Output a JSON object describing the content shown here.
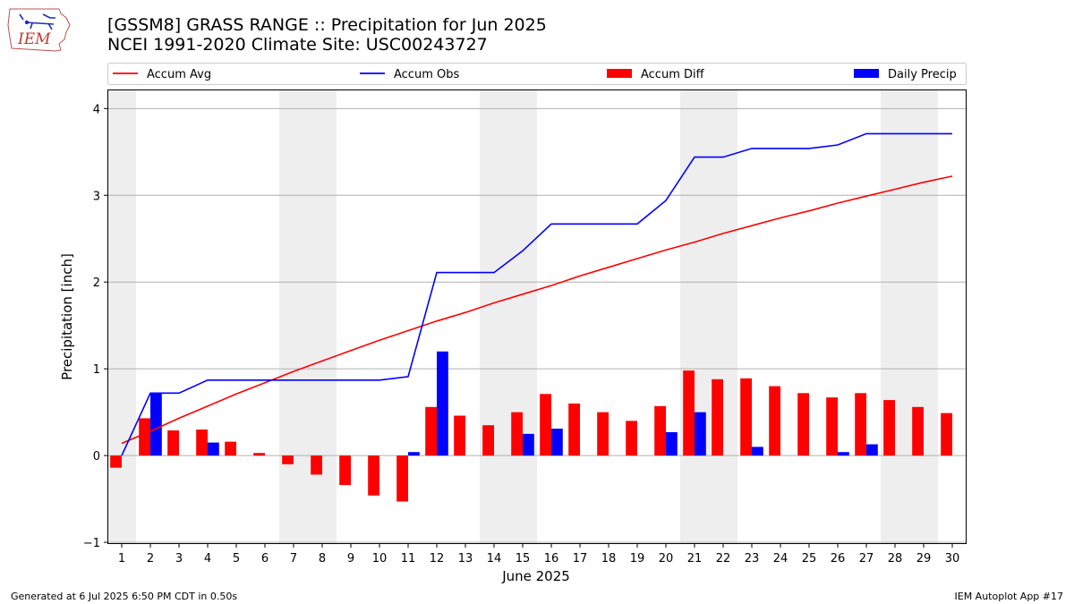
{
  "header": {
    "title_line1": "[GSSM8] GRASS RANGE :: Precipitation for Jun 2025",
    "title_line2": "NCEI 1991-2020 Climate Site: USC00243727",
    "logo_text": "IEM"
  },
  "footer": {
    "left": "Generated at 6 Jul 2025 6:50 PM CDT in 0.50s",
    "right": "IEM Autoplot App #17"
  },
  "colors": {
    "avg": "#ff0000",
    "obs": "#0000ff",
    "diff": "#ff0000",
    "daily": "#0000ff",
    "weekend_shade": "#eeeeee",
    "grid": "#b0b0b0"
  },
  "chart_data": {
    "type": "bar",
    "xlabel": "June 2025",
    "ylabel": "Precipitation [inch]",
    "ylim": [
      -1.02,
      4.22
    ],
    "yticks": [
      -1,
      0,
      1,
      2,
      3,
      4
    ],
    "x": [
      1,
      2,
      3,
      4,
      5,
      6,
      7,
      8,
      9,
      10,
      11,
      12,
      13,
      14,
      15,
      16,
      17,
      18,
      19,
      20,
      21,
      22,
      23,
      24,
      25,
      26,
      27,
      28,
      29,
      30
    ],
    "weekend_days": [
      1,
      7,
      8,
      14,
      15,
      21,
      22,
      28,
      29
    ],
    "legend": [
      "Accum Avg",
      "Accum Obs",
      "Accum Diff",
      "Daily Precip"
    ],
    "legend_position": "top",
    "grid": "horizontal",
    "series": [
      {
        "name": "Accum Avg",
        "kind": "line",
        "values": [
          0.14,
          0.28,
          0.43,
          0.57,
          0.71,
          0.84,
          0.97,
          1.09,
          1.21,
          1.33,
          1.44,
          1.55,
          1.65,
          1.76,
          1.86,
          1.96,
          2.07,
          2.17,
          2.27,
          2.37,
          2.46,
          2.56,
          2.65,
          2.74,
          2.82,
          2.91,
          2.99,
          3.07,
          3.15,
          3.22
        ]
      },
      {
        "name": "Accum Obs",
        "kind": "line",
        "values": [
          0.0,
          0.72,
          0.72,
          0.87,
          0.87,
          0.87,
          0.87,
          0.87,
          0.87,
          0.87,
          0.91,
          2.11,
          2.11,
          2.11,
          2.36,
          2.67,
          2.67,
          2.67,
          2.67,
          2.94,
          3.44,
          3.44,
          3.54,
          3.54,
          3.54,
          3.58,
          3.71,
          3.71,
          3.71,
          3.71
        ]
      },
      {
        "name": "Accum Diff",
        "kind": "bar",
        "values": [
          -0.14,
          0.43,
          0.29,
          0.3,
          0.16,
          0.03,
          -0.1,
          -0.22,
          -0.34,
          -0.46,
          -0.53,
          0.56,
          0.46,
          0.35,
          0.5,
          0.71,
          0.6,
          0.5,
          0.4,
          0.57,
          0.98,
          0.88,
          0.89,
          0.8,
          0.72,
          0.67,
          0.72,
          0.64,
          0.56,
          0.49
        ]
      },
      {
        "name": "Daily Precip",
        "kind": "bar",
        "values": [
          0.0,
          0.72,
          0.0,
          0.15,
          0.0,
          0.0,
          0.0,
          0.0,
          0.0,
          0.0,
          0.04,
          1.2,
          0.0,
          0.0,
          0.25,
          0.31,
          0.0,
          0.0,
          0.0,
          0.27,
          0.5,
          0.0,
          0.1,
          0.0,
          0.0,
          0.04,
          0.13,
          0.0,
          0.0,
          0.0
        ]
      }
    ]
  }
}
